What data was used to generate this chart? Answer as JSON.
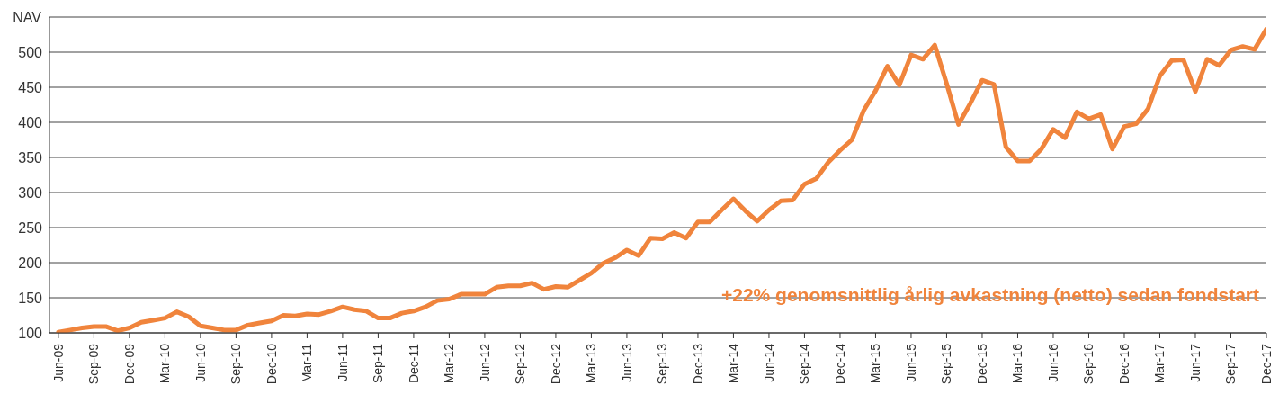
{
  "chart_data": {
    "type": "line",
    "ylabel": "NAV",
    "annotations": [
      "+22% genomsnittlig årlig avkastning (netto) sedan fondstart"
    ],
    "categories": [
      "Jun-09",
      null,
      null,
      "Sep-09",
      null,
      null,
      "Dec-09",
      null,
      null,
      "Mar-10",
      null,
      null,
      "Jun-10",
      null,
      null,
      "Sep-10",
      null,
      null,
      "Dec-10",
      null,
      null,
      "Mar-11",
      null,
      null,
      "Jun-11",
      null,
      null,
      "Sep-11",
      null,
      null,
      "Dec-11",
      null,
      null,
      "Mar-12",
      null,
      null,
      "Jun-12",
      null,
      null,
      "Sep-12",
      null,
      null,
      "Dec-12",
      null,
      null,
      "Mar-13",
      null,
      null,
      "Jun-13",
      null,
      null,
      "Sep-13",
      null,
      null,
      "Dec-13",
      null,
      null,
      "Mar-14",
      null,
      null,
      "Jun-14",
      null,
      null,
      "Sep-14",
      null,
      null,
      "Dec-14",
      null,
      null,
      "Mar-15",
      null,
      null,
      "Jun-15",
      null,
      null,
      "Sep-15",
      null,
      null,
      "Dec-15",
      null,
      null,
      "Mar-16",
      null,
      null,
      "Jun-16",
      null,
      null,
      "Sep-16",
      null,
      null,
      "Dec-16",
      null,
      null,
      "Mar-17",
      null,
      null,
      "Jun-17",
      null,
      null,
      "Sep-17",
      null,
      null,
      "Dec-17"
    ],
    "series": [
      {
        "color": "#f0843c",
        "values": [
          101,
          104,
          107,
          109,
          109,
          103,
          107,
          115,
          118,
          121,
          130,
          123,
          110,
          107,
          104,
          104,
          111,
          114,
          117,
          125,
          124,
          127,
          126,
          131,
          137,
          133,
          131,
          121,
          121,
          128,
          131,
          137,
          146,
          148,
          155,
          155,
          155,
          165,
          167,
          167,
          171,
          162,
          166,
          165,
          175,
          185,
          199,
          207,
          218,
          210,
          235,
          234,
          243,
          235,
          258,
          258,
          275,
          291,
          274,
          259,
          275,
          288,
          289,
          312,
          320,
          343,
          360,
          375,
          417,
          445,
          480,
          453,
          496,
          490,
          510,
          455,
          397,
          427,
          460,
          454,
          365,
          345,
          345,
          362,
          390,
          378,
          415,
          405,
          411,
          362,
          394,
          398,
          419,
          466,
          488,
          489,
          444,
          490,
          481,
          503,
          508,
          504,
          533
        ]
      }
    ],
    "ylim": [
      100,
      550
    ],
    "yticks": [
      100,
      150,
      200,
      250,
      300,
      350,
      400,
      450,
      500,
      {
        "value": 550,
        "label": null
      }
    ],
    "grid": "y",
    "legend": false,
    "marker": "none",
    "line_style": "solid"
  }
}
